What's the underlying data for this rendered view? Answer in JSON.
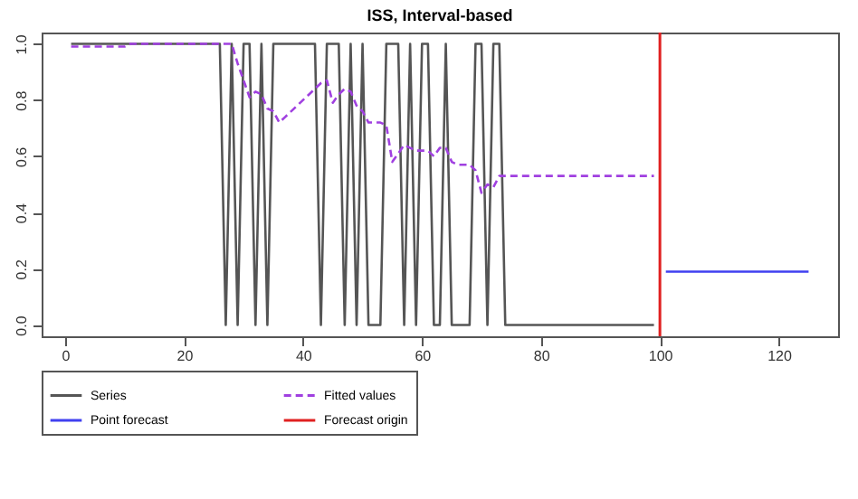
{
  "chart_data": {
    "type": "line",
    "title": "ISS, Interval-based",
    "x": [
      1,
      2,
      3,
      4,
      5,
      6,
      7,
      8,
      9,
      10,
      11,
      12,
      13,
      14,
      15,
      16,
      17,
      18,
      19,
      20,
      21,
      22,
      23,
      24,
      25,
      26,
      27,
      28,
      29,
      30,
      31,
      32,
      33,
      34,
      35,
      36,
      37,
      38,
      39,
      40,
      41,
      42,
      43,
      44,
      45,
      46,
      47,
      48,
      49,
      50,
      51,
      52,
      53,
      54,
      55,
      56,
      57,
      58,
      59,
      60,
      61,
      62,
      63,
      64,
      65,
      66,
      67,
      68,
      69,
      70,
      71,
      72,
      73,
      74,
      75,
      76,
      77,
      78,
      79,
      80,
      81,
      82,
      83,
      84,
      85,
      86,
      87,
      88,
      89,
      90,
      91,
      92,
      93,
      94,
      95,
      96,
      97,
      98,
      99
    ],
    "series": [
      {
        "name": "Series",
        "color": "#555555",
        "line_style": "solid",
        "values": [
          1,
          1,
          1,
          1,
          1,
          1,
          1,
          1,
          1,
          1,
          1,
          1,
          1,
          1,
          1,
          1,
          1,
          1,
          1,
          1,
          1,
          1,
          1,
          1,
          1,
          1,
          0,
          1,
          0,
          1,
          1,
          0,
          1,
          0,
          1,
          1,
          1,
          1,
          1,
          1,
          1,
          1,
          0,
          1,
          1,
          1,
          0,
          1,
          0,
          1,
          0,
          0,
          0,
          1,
          1,
          1,
          0,
          1,
          0,
          1,
          1,
          0,
          0,
          1,
          0,
          0,
          0,
          0,
          1,
          1,
          0,
          1,
          1,
          0,
          0,
          0,
          0,
          0,
          0,
          0,
          0,
          0,
          0,
          0,
          0,
          0,
          0,
          0,
          0,
          0,
          0,
          0,
          0,
          0,
          0,
          0,
          0,
          0,
          0
        ]
      },
      {
        "name": "Fitted values",
        "color": "#a040e0",
        "line_style": "dashed",
        "values": [
          0.99,
          0.99,
          0.99,
          0.99,
          0.99,
          0.99,
          0.99,
          0.99,
          0.99,
          0.99,
          1,
          1,
          1,
          1,
          1,
          1,
          1,
          1,
          1,
          1,
          1,
          1,
          1,
          1,
          1,
          1,
          1,
          1,
          0.93,
          0.87,
          0.81,
          0.83,
          0.82,
          0.77,
          0.76,
          0.72,
          0.74,
          0.76,
          0.78,
          0.8,
          0.82,
          0.84,
          0.86,
          0.87,
          0.79,
          0.82,
          0.84,
          0.83,
          0.78,
          0.76,
          0.72,
          0.72,
          0.72,
          0.71,
          0.58,
          0.61,
          0.64,
          0.63,
          0.62,
          0.62,
          0.62,
          0.6,
          0.63,
          0.63,
          0.58,
          0.57,
          0.57,
          0.57,
          0.55,
          0.47,
          0.5,
          0.49,
          0.53,
          0.53,
          0.53,
          0.53,
          0.53,
          0.53,
          0.53,
          0.53,
          0.53,
          0.53,
          0.53,
          0.53,
          0.53,
          0.53,
          0.53,
          0.53,
          0.53,
          0.53,
          0.53,
          0.53,
          0.53,
          0.53,
          0.53,
          0.53,
          0.53,
          0.53,
          0.53
        ]
      },
      {
        "name": "Point forecast",
        "color": "#4040f0",
        "line_style": "solid",
        "x": [
          101,
          125
        ],
        "values": [
          0.19,
          0.19
        ]
      }
    ],
    "ref_lines": [
      {
        "axis": "x",
        "value": 100,
        "label": "Forecast origin",
        "color": "#e02020"
      }
    ],
    "xlim": [
      -3.96,
      129.96
    ],
    "xticks": [
      0,
      20,
      40,
      60,
      80,
      100,
      120
    ],
    "ylim": [
      -0.04,
      1.04
    ],
    "yticks": [
      {
        "value": 0,
        "label": "0.0"
      },
      {
        "value": 0.2,
        "label": "0.2"
      },
      {
        "value": 0.4,
        "label": "0.4"
      },
      {
        "value": 0.6,
        "label": "0.6"
      },
      {
        "value": 0.8,
        "label": "0.8"
      },
      {
        "value": 1,
        "label": "1.0"
      }
    ],
    "legend": "bottom",
    "marker": "none"
  }
}
